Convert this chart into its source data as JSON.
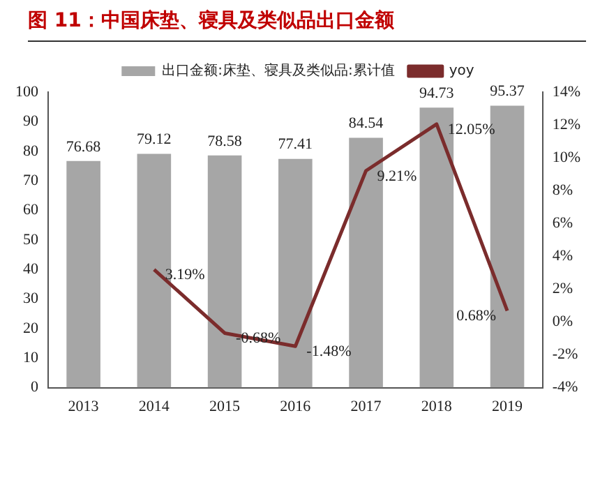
{
  "chart_data": {
    "type": "bar",
    "title": "图 11：中国床垫、寝具及类似品出口金额",
    "categories": [
      "2013",
      "2014",
      "2015",
      "2016",
      "2017",
      "2018",
      "2019"
    ],
    "series": [
      {
        "name": "出口金额:床垫、寝具及类似品:累计值",
        "color": "#a6a6a6",
        "values": [
          76.68,
          79.12,
          78.58,
          77.41,
          84.54,
          94.73,
          95.37
        ],
        "value_labels": [
          "76.68",
          "79.12",
          "78.58",
          "77.41",
          "84.54",
          "94.73",
          "95.37"
        ]
      },
      {
        "name": "yoy",
        "type": "line",
        "axis": "y2",
        "color": "#7b2c2c",
        "values": [
          null,
          3.19,
          -0.68,
          -1.48,
          9.21,
          12.05,
          0.68
        ],
        "value_labels": [
          null,
          "3.19%",
          "-0.68%",
          "-1.48%",
          "9.21%",
          "12.05%",
          "0.68%"
        ]
      }
    ],
    "ylim": [
      0,
      100
    ],
    "yticks": [
      0,
      10,
      20,
      30,
      40,
      50,
      60,
      70,
      80,
      90,
      100
    ],
    "y2lim": [
      -4,
      14
    ],
    "y2ticks": [
      {
        "value": -4,
        "label": "-4%"
      },
      {
        "value": -2,
        "label": "-2%"
      },
      {
        "value": 0,
        "label": "0%"
      },
      {
        "value": 2,
        "label": "2%"
      },
      {
        "value": 4,
        "label": "4%"
      },
      {
        "value": 6,
        "label": "6%"
      },
      {
        "value": 8,
        "label": "8%"
      },
      {
        "value": 10,
        "label": "10%"
      },
      {
        "value": 12,
        "label": "12%"
      },
      {
        "value": 14,
        "label": "14%"
      }
    ],
    "legend": "top",
    "grid": false,
    "marker": "none"
  }
}
